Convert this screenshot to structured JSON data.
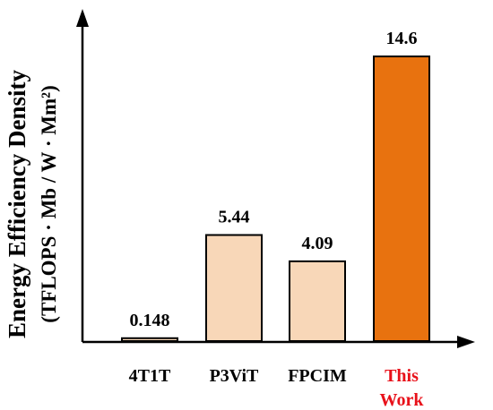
{
  "chart_data": {
    "type": "bar",
    "categories": [
      "4T1T",
      "P3ViT",
      "FPCIM",
      "This Work"
    ],
    "category_lines": [
      [
        "4T1T"
      ],
      [
        "P3ViT"
      ],
      [
        "FPCIM"
      ],
      [
        "This",
        "Work"
      ]
    ],
    "values": [
      0.148,
      5.44,
      4.09,
      14.6
    ],
    "value_labels": [
      "0.148",
      "5.44",
      "4.09",
      "14.6"
    ],
    "ylabel_line1": "Energy Efficiency Density",
    "ylabel_line2": "(TFLOPS · Mb / W · Mm²)",
    "ylim": [
      0,
      16.3
    ],
    "grid": false,
    "bar_colors": [
      "#F8D7B8",
      "#F8D7B8",
      "#F8D7B8",
      "#E8720F"
    ],
    "label_colors": [
      "#000000",
      "#000000",
      "#000000",
      "#E8111A"
    ],
    "bar_stroke": "#000000"
  }
}
